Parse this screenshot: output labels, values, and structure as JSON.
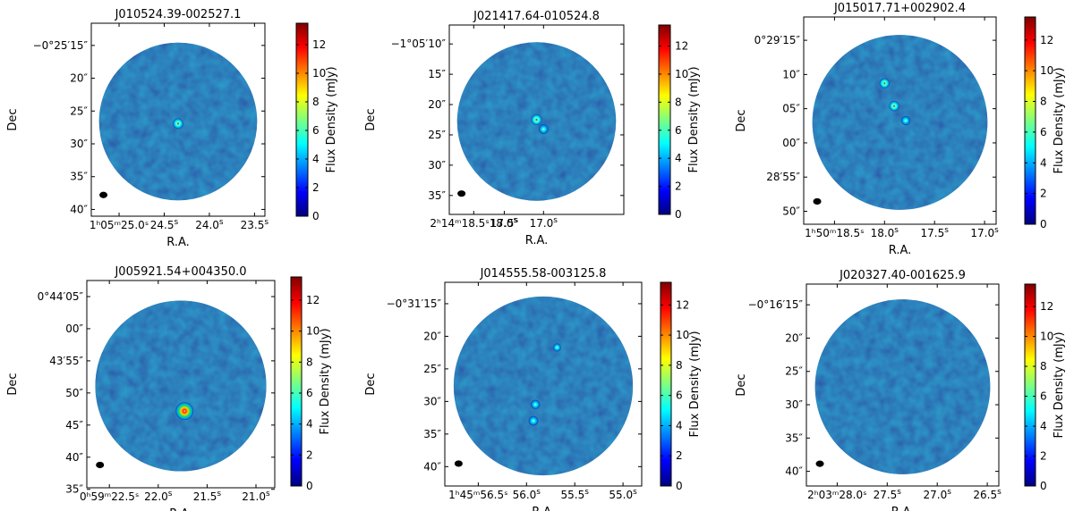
{
  "colorbar": {
    "label": "Flux Density (mJy)",
    "ticks": [
      0,
      2,
      4,
      6,
      8,
      10,
      12
    ],
    "range": [
      0,
      13.5
    ],
    "colormap": [
      "#00007f",
      "#0000ff",
      "#007fff",
      "#00ffff",
      "#7fff7f",
      "#ffff00",
      "#ff7f00",
      "#ff0000",
      "#7f0000"
    ]
  },
  "axis_labels": {
    "x": "R.A.",
    "y": "Dec"
  },
  "background_color": "#1b3a8c",
  "beam_color": "#000000",
  "chart_data": [
    {
      "type": "heatmap",
      "title": "J010524.39-002527.1",
      "xlabel": "R.A.",
      "ylabel": "Dec",
      "xticks": [
        {
          "main": "1ʰ05ᵐ25.0ˢ",
          "sup": ""
        },
        {
          "main": "24.5",
          "sup": "s"
        },
        {
          "main": "24.0",
          "sup": "s"
        },
        {
          "main": "23.5",
          "sup": "s"
        }
      ],
      "yticks": [
        "−0°25′15″",
        "20″",
        "25″",
        "30″",
        "35″",
        "40″"
      ],
      "sources": [
        {
          "x": 0.5,
          "y": 0.52,
          "flux": 4.0
        }
      ]
    },
    {
      "type": "heatmap",
      "title": "J021417.64-010524.8",
      "xlabel": "R.A.",
      "ylabel": "Dec",
      "xticks": [
        {
          "main": "2ʰ14ᵐ18.5ˢ18.0",
          "sup": "s"
        },
        {
          "main": "17.5",
          "sup": "s"
        },
        {
          "main": "17.0",
          "sup": "s"
        }
      ],
      "yticks": [
        "−1°05′10″",
        "15″",
        "20″",
        "25″",
        "30″",
        "35″",
        "40″"
      ],
      "sources": [
        {
          "x": 0.5,
          "y": 0.5,
          "flux": 4.5
        },
        {
          "x": 0.54,
          "y": 0.55,
          "flux": 3.0
        }
      ]
    },
    {
      "type": "heatmap",
      "title": "J015017.71+002902.4",
      "xlabel": "R.A.",
      "ylabel": "Dec",
      "xticks": [
        {
          "main": "1ʰ50ᵐ18.5ˢ",
          "sup": ""
        },
        {
          "main": "18.0",
          "sup": "s"
        },
        {
          "main": "17.5",
          "sup": "s"
        },
        {
          "main": "17.0",
          "sup": "s"
        }
      ],
      "yticks": [
        "0°29′15″",
        "10″",
        "05″",
        "00″",
        "28′55″",
        "50″"
      ],
      "sources": [
        {
          "x": 0.42,
          "y": 0.32,
          "flux": 3.5
        },
        {
          "x": 0.47,
          "y": 0.43,
          "flux": 3.5
        },
        {
          "x": 0.53,
          "y": 0.5,
          "flux": 2.5
        }
      ]
    },
    {
      "type": "heatmap",
      "title": "J005921.54+004350.0",
      "xlabel": "R.A.",
      "ylabel": "Dec",
      "xticks": [
        {
          "main": "0ʰ59ᵐ22.5ˢ",
          "sup": ""
        },
        {
          "main": "22.0",
          "sup": "s"
        },
        {
          "main": "21.5",
          "sup": "s"
        },
        {
          "main": "21.0",
          "sup": "s"
        }
      ],
      "yticks": [
        "0°44′05″",
        "00″",
        "43′55″",
        "50″",
        "45″",
        "40″",
        "35″"
      ],
      "sources": [
        {
          "x": 0.52,
          "y": 0.63,
          "flux": 13.0
        }
      ]
    },
    {
      "type": "heatmap",
      "title": "J014555.58-003125.8",
      "xlabel": "R.A.",
      "ylabel": "Dec",
      "xticks": [
        {
          "main": "1ʰ45ᵐ56.5ˢ",
          "sup": ""
        },
        {
          "main": "56.0",
          "sup": "s"
        },
        {
          "main": "55.5",
          "sup": "s"
        },
        {
          "main": "55.0",
          "sup": "s"
        }
      ],
      "yticks": [
        "−0°31′15″",
        "20″",
        "25″",
        "30″",
        "35″",
        "40″"
      ],
      "sources": [
        {
          "x": 0.46,
          "y": 0.6,
          "flux": 2.5
        },
        {
          "x": 0.45,
          "y": 0.68,
          "flux": 3.0
        },
        {
          "x": 0.57,
          "y": 0.32,
          "flux": 1.2
        }
      ]
    },
    {
      "type": "heatmap",
      "title": "J020327.40-001625.9",
      "xlabel": "R.A.",
      "ylabel": "Dec",
      "xticks": [
        {
          "main": "2ʰ03ᵐ28.0ˢ",
          "sup": ""
        },
        {
          "main": "27.5",
          "sup": "s"
        },
        {
          "main": "27.0",
          "sup": "s"
        },
        {
          "main": "26.5",
          "sup": "s"
        }
      ],
      "yticks": [
        "−0°16′15″",
        "20″",
        "25″",
        "30″",
        "35″",
        "40″"
      ],
      "sources": []
    }
  ]
}
